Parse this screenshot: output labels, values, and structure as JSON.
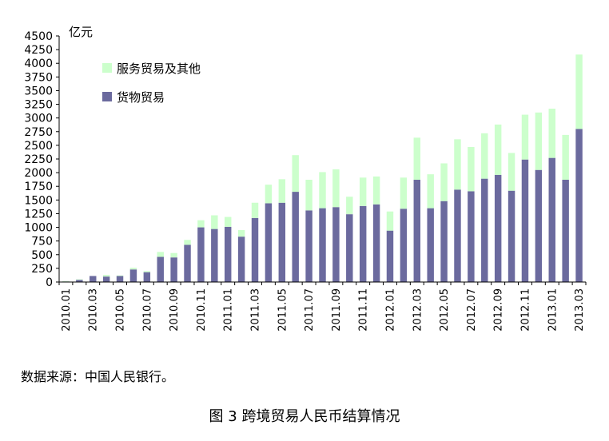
{
  "chart_data": {
    "type": "bar",
    "stacked": true,
    "unit": "亿元",
    "ylim": [
      0,
      4500
    ],
    "yticks": [
      0,
      250,
      500,
      750,
      1000,
      1250,
      1500,
      1750,
      2000,
      2250,
      2500,
      2750,
      3000,
      3250,
      3500,
      3750,
      4000,
      4250,
      4500
    ],
    "grid": false,
    "legend_position": "top-left",
    "categories": [
      "2010.01",
      "2010.02",
      "2010.03",
      "2010.04",
      "2010.05",
      "2010.06",
      "2010.07",
      "2010.08",
      "2010.09",
      "2010.10",
      "2010.11",
      "2010.12",
      "2011.01",
      "2011.02",
      "2011.03",
      "2011.04",
      "2011.05",
      "2011.06",
      "2011.07",
      "2011.08",
      "2011.09",
      "2011.10",
      "2011.11",
      "2011.12",
      "2012.01",
      "2012.02",
      "2012.03",
      "2012.04",
      "2012.05",
      "2012.06",
      "2012.07",
      "2012.08",
      "2012.09",
      "2012.10",
      "2012.11",
      "2012.12",
      "2013.01",
      "2013.02",
      "2013.03"
    ],
    "tick_labels": [
      "2010.01",
      "",
      "2010.03",
      "",
      "2010.05",
      "",
      "2010.07",
      "",
      "2010.09",
      "",
      "2010.11",
      "",
      "2011.01",
      "",
      "2011.03",
      "",
      "2011.05",
      "",
      "2011.07",
      "",
      "2011.09",
      "",
      "2011.11",
      "",
      "2012.01",
      "",
      "2012.03",
      "",
      "2012.05",
      "",
      "2012.07",
      "",
      "2012.09",
      "",
      "2012.11",
      "",
      "2013.01",
      "",
      "2013.03"
    ],
    "series": [
      {
        "name": "货物贸易",
        "color": "#6b6a9e",
        "values": [
          10,
          40,
          110,
          100,
          110,
          230,
          180,
          460,
          450,
          680,
          1000,
          970,
          1010,
          830,
          1170,
          1440,
          1450,
          1650,
          1310,
          1350,
          1370,
          1240,
          1390,
          1420,
          940,
          1340,
          1870,
          1350,
          1480,
          1690,
          1660,
          1890,
          1960,
          1670,
          2240,
          2050,
          2270,
          1870,
          2800
        ]
      },
      {
        "name": "服务贸易及其他",
        "color": "#ccffcc",
        "values": [
          10,
          10,
          0,
          30,
          10,
          30,
          20,
          90,
          80,
          90,
          130,
          250,
          180,
          120,
          280,
          340,
          430,
          670,
          560,
          660,
          690,
          320,
          520,
          510,
          350,
          570,
          770,
          620,
          690,
          920,
          810,
          830,
          920,
          690,
          820,
          1050,
          900,
          820,
          1360
        ]
      }
    ],
    "source": "数据来源：中国人民银行。",
    "caption": "图 3 跨境贸易人民币结算情况"
  }
}
